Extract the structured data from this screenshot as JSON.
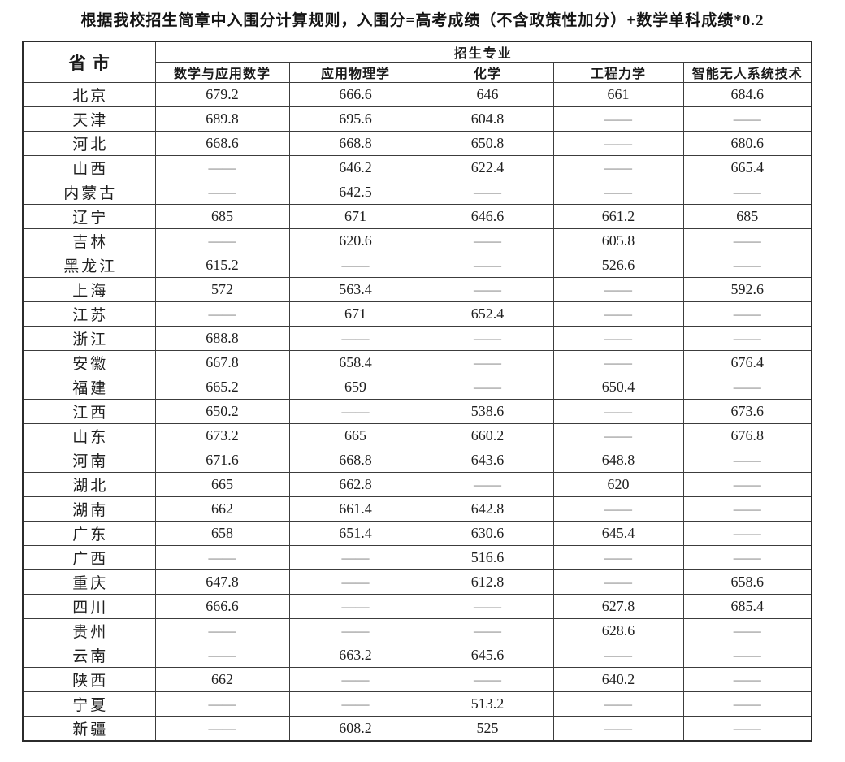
{
  "title": "根据我校招生简章中入围分计算规则，入围分=高考成绩（不含政策性加分）+数学单科成绩*0.2",
  "colors": {
    "text": "#1f1f1f",
    "dash": "#787878",
    "border": "#3c3c3c",
    "background": "#ffffff"
  },
  "table": {
    "province_header": "省市",
    "majors_header": "招生专业",
    "major_columns": [
      "数学与应用数学",
      "应用物理学",
      "化学",
      "工程力学",
      "智能无人系统技术"
    ],
    "placeholder": "——",
    "rows": [
      {
        "province": "北京",
        "values": [
          "679.2",
          "666.6",
          "646",
          "661",
          "684.6"
        ]
      },
      {
        "province": "天津",
        "values": [
          "689.8",
          "695.6",
          "604.8",
          null,
          null
        ]
      },
      {
        "province": "河北",
        "values": [
          "668.6",
          "668.8",
          "650.8",
          null,
          "680.6"
        ]
      },
      {
        "province": "山西",
        "values": [
          null,
          "646.2",
          "622.4",
          null,
          "665.4"
        ]
      },
      {
        "province": "内蒙古",
        "values": [
          null,
          "642.5",
          null,
          null,
          null
        ]
      },
      {
        "province": "辽宁",
        "values": [
          "685",
          "671",
          "646.6",
          "661.2",
          "685"
        ]
      },
      {
        "province": "吉林",
        "values": [
          null,
          "620.6",
          null,
          "605.8",
          null
        ]
      },
      {
        "province": "黑龙江",
        "values": [
          "615.2",
          null,
          null,
          "526.6",
          null
        ]
      },
      {
        "province": "上海",
        "values": [
          "572",
          "563.4",
          null,
          null,
          "592.6"
        ]
      },
      {
        "province": "江苏",
        "values": [
          null,
          "671",
          "652.4",
          null,
          null
        ]
      },
      {
        "province": "浙江",
        "values": [
          "688.8",
          null,
          null,
          null,
          null
        ]
      },
      {
        "province": "安徽",
        "values": [
          "667.8",
          "658.4",
          null,
          null,
          "676.4"
        ]
      },
      {
        "province": "福建",
        "values": [
          "665.2",
          "659",
          null,
          "650.4",
          null
        ]
      },
      {
        "province": "江西",
        "values": [
          "650.2",
          null,
          "538.6",
          null,
          "673.6"
        ]
      },
      {
        "province": "山东",
        "values": [
          "673.2",
          "665",
          "660.2",
          null,
          "676.8"
        ]
      },
      {
        "province": "河南",
        "values": [
          "671.6",
          "668.8",
          "643.6",
          "648.8",
          null
        ]
      },
      {
        "province": "湖北",
        "values": [
          "665",
          "662.8",
          null,
          "620",
          null
        ]
      },
      {
        "province": "湖南",
        "values": [
          "662",
          "661.4",
          "642.8",
          null,
          null
        ]
      },
      {
        "province": "广东",
        "values": [
          "658",
          "651.4",
          "630.6",
          "645.4",
          null
        ]
      },
      {
        "province": "广西",
        "values": [
          null,
          null,
          "516.6",
          null,
          null
        ]
      },
      {
        "province": "重庆",
        "values": [
          "647.8",
          null,
          "612.8",
          null,
          "658.6"
        ]
      },
      {
        "province": "四川",
        "values": [
          "666.6",
          null,
          null,
          "627.8",
          "685.4"
        ]
      },
      {
        "province": "贵州",
        "values": [
          null,
          null,
          null,
          "628.6",
          null
        ]
      },
      {
        "province": "云南",
        "values": [
          null,
          "663.2",
          "645.6",
          null,
          null
        ]
      },
      {
        "province": "陕西",
        "values": [
          "662",
          null,
          null,
          "640.2",
          null
        ]
      },
      {
        "province": "宁夏",
        "values": [
          null,
          null,
          "513.2",
          null,
          null
        ]
      },
      {
        "province": "新疆",
        "values": [
          null,
          "608.2",
          "525",
          null,
          null
        ]
      }
    ]
  }
}
